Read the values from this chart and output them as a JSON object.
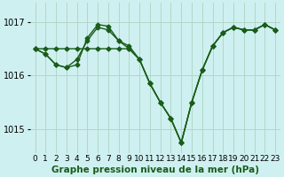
{
  "title": "Graphe pression niveau de la mer (hPa)",
  "bg_color": "#cff0f0",
  "grid_color": "#b0d8c8",
  "line_color": "#1a5c1a",
  "marker": "D",
  "markersize": 2.5,
  "linewidth": 1.0,
  "xlabel_fontsize": 6.5,
  "ylabel_fontsize": 7,
  "title_fontsize": 7.5,
  "xlim": [
    -0.5,
    23.5
  ],
  "ylim": [
    1014.55,
    1017.35
  ],
  "yticks": [
    1015,
    1016,
    1017
  ],
  "xticks": [
    0,
    1,
    2,
    3,
    4,
    5,
    6,
    7,
    8,
    9,
    10,
    11,
    12,
    13,
    14,
    15,
    16,
    17,
    18,
    19,
    20,
    21,
    22,
    23
  ],
  "series": [
    [
      1016.5,
      1016.5,
      1016.5,
      1016.5,
      1016.5,
      1016.5,
      1016.5,
      1016.5,
      1016.5,
      1016.5,
      1016.3,
      1015.85,
      1015.5,
      1015.2,
      1014.75,
      1015.5,
      1016.1,
      1016.55,
      1016.8,
      1016.9,
      1016.85,
      1016.85,
      1016.95,
      1016.85
    ],
    [
      1016.5,
      1016.4,
      1016.2,
      1016.15,
      1016.3,
      1016.65,
      1016.9,
      1016.85,
      1016.65,
      1016.5,
      1016.3,
      1015.85,
      1015.5,
      1015.2,
      1014.75,
      1015.5,
      1016.1,
      1016.55,
      1016.8,
      1016.9,
      1016.85,
      1016.85,
      1016.95,
      1016.85
    ],
    [
      1016.5,
      1016.4,
      1016.2,
      1016.15,
      1016.2,
      1016.7,
      1016.95,
      1016.92,
      1016.65,
      1016.55,
      1016.3,
      1015.85,
      1015.5,
      1015.2,
      1014.75,
      1015.5,
      1016.1,
      1016.55,
      1016.8,
      1016.9,
      1016.85,
      1016.85,
      1016.95,
      1016.85
    ]
  ]
}
